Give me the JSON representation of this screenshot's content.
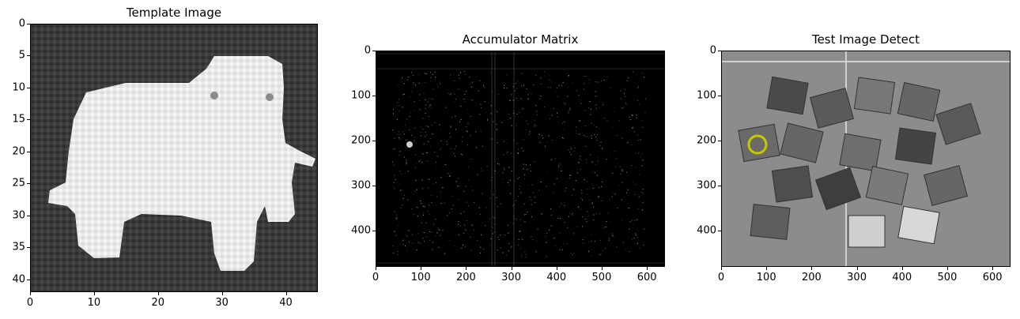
{
  "panels": [
    {
      "title": "Template Image",
      "xticks": [
        "0",
        "10",
        "20",
        "30",
        "40"
      ],
      "yticks": [
        "0",
        "5",
        "10",
        "15",
        "20",
        "25",
        "30",
        "35",
        "40"
      ],
      "xrange": [
        0,
        45
      ],
      "yrange": [
        0,
        42
      ]
    },
    {
      "title": "Accumulator Matrix",
      "xticks": [
        "0",
        "100",
        "200",
        "300",
        "400",
        "500",
        "600"
      ],
      "yticks": [
        "0",
        "100",
        "200",
        "300",
        "400"
      ],
      "xrange": [
        0,
        640
      ],
      "yrange": [
        0,
        480
      ]
    },
    {
      "title": "Test Image Detect",
      "xticks": [
        "0",
        "100",
        "200",
        "300",
        "400",
        "500",
        "600"
      ],
      "yticks": [
        "0",
        "100",
        "200",
        "300",
        "400"
      ],
      "xrange": [
        0,
        640
      ],
      "yrange": [
        0,
        480
      ],
      "detection_color": "#d4d400"
    }
  ]
}
